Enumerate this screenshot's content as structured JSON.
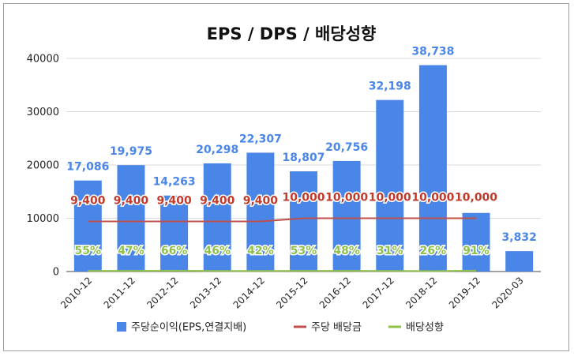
{
  "chart_data": {
    "type": "bar",
    "title": "EPS / DPS / 배당성향",
    "categories": [
      "2010-12",
      "2011-12",
      "2012-12",
      "2013-12",
      "2014-12",
      "2015-12",
      "2016-12",
      "2017-12",
      "2018-12",
      "2019-12",
      "2020-03"
    ],
    "ylim": [
      0,
      40000
    ],
    "yticks": [
      0,
      10000,
      20000,
      30000,
      40000
    ],
    "ytick_labels": [
      "0",
      "10000",
      "20000",
      "30000",
      "40000"
    ],
    "grid": true,
    "legend_position": "bottom",
    "series": [
      {
        "name": "주당순이익(EPS,연결지배)",
        "type": "bar",
        "color": "#4a86e8",
        "values": [
          17086,
          19975,
          14263,
          20298,
          22307,
          18807,
          20756,
          32198,
          38738,
          11000,
          3832
        ],
        "labels": [
          "17,086",
          "19,975",
          "14,263",
          "20,298",
          "22,307",
          "18,807",
          "20,756",
          "32,198",
          "38,738",
          "",
          "3,832"
        ]
      },
      {
        "name": "주당 배당금",
        "type": "line",
        "color": "#c0504d",
        "values": [
          9400,
          9400,
          9400,
          9400,
          9400,
          10000,
          10000,
          10000,
          10000,
          10000,
          null
        ],
        "labels": [
          "9,400",
          "9,400",
          "9,400",
          "9,400",
          "9,400",
          "10,000",
          "10,000",
          "10,000",
          "10,000",
          "10,000",
          ""
        ]
      },
      {
        "name": "배당성향",
        "type": "line",
        "color": "#8fc14a",
        "values": [
          55,
          47,
          66,
          46,
          42,
          53,
          48,
          31,
          26,
          91,
          null
        ],
        "labels": [
          "55%",
          "47%",
          "66%",
          "46%",
          "42%",
          "53%",
          "48%",
          "31%",
          "26%",
          "91%",
          ""
        ]
      }
    ]
  }
}
